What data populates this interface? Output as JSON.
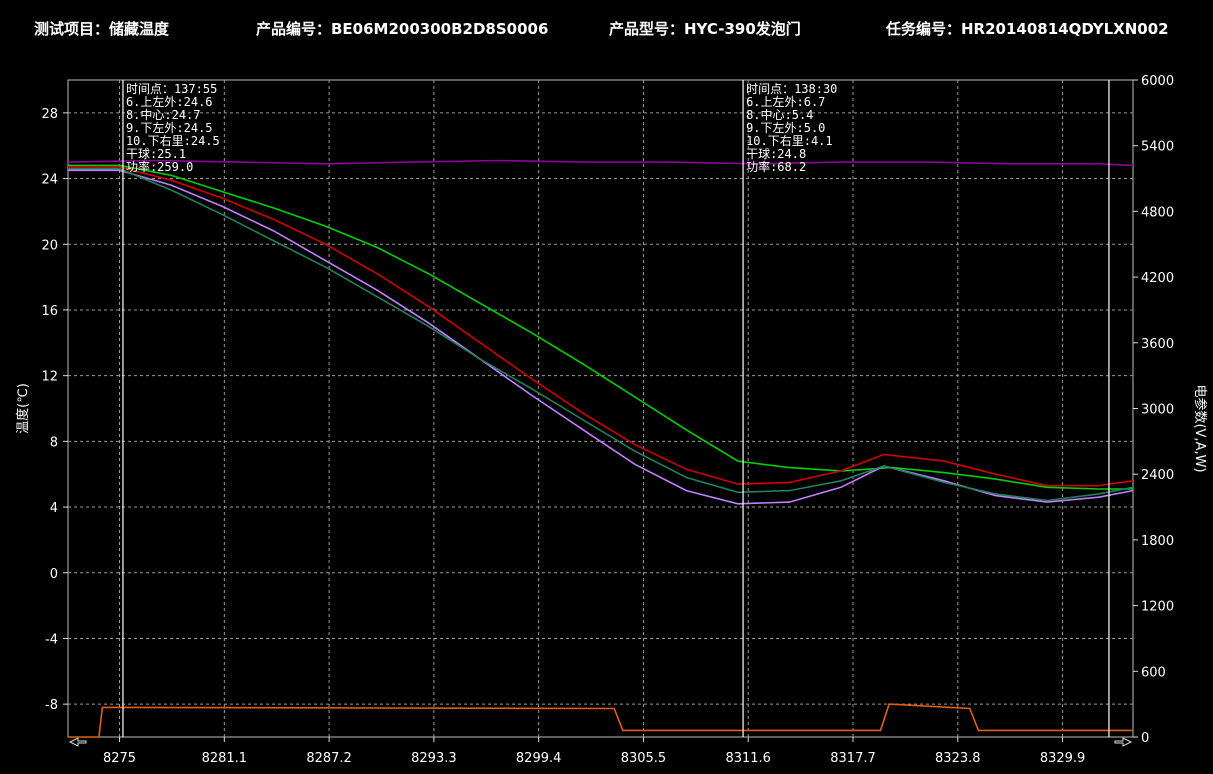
{
  "header": {
    "project": "测试项目：储藏温度",
    "product_code": "产品编号：BE06M200300B2D8S0006",
    "product_model": "产品型号：HYC-390发泡门",
    "task_number": "任务编号：HR20140814QDYLXN002"
  },
  "chart_data": {
    "type": "line",
    "title": "",
    "xlabel": "",
    "ylabel": "温度(℃)",
    "y2label": "电参数(V,A,W)",
    "xlim": [
      8272,
      8334
    ],
    "ylim": [
      -10,
      30
    ],
    "y2lim": [
      0,
      6000
    ],
    "grid": true,
    "x_ticks": [
      8275,
      8281.1,
      8287.2,
      8293.3,
      8299.4,
      8305.5,
      8311.6,
      8317.7,
      8323.8,
      8329.9
    ],
    "y_ticks": [
      -8,
      -4,
      0,
      4,
      8,
      12,
      16,
      20,
      24,
      28
    ],
    "y2_ticks": [
      0,
      600,
      1200,
      1800,
      2400,
      3000,
      3600,
      4200,
      4800,
      5400,
      6000
    ],
    "series": [
      {
        "color": "#00d000",
        "axis": "left",
        "x": [
          8272,
          8275,
          8278,
          8281,
          8284,
          8287,
          8290,
          8293,
          8296,
          8299,
          8302,
          8305,
          8308,
          8311,
          8314,
          8317,
          8320,
          8323,
          8326,
          8329,
          8332,
          8334
        ],
        "y": [
          24.8,
          24.8,
          24.2,
          23.2,
          22.2,
          21.1,
          19.8,
          18.2,
          16.4,
          14.6,
          12.7,
          10.7,
          8.7,
          6.8,
          6.4,
          6.2,
          6.4,
          6.1,
          5.7,
          5.2,
          5.1,
          5.1
        ]
      },
      {
        "color": "#d00000",
        "axis": "left",
        "x": [
          8272,
          8275,
          8278,
          8281,
          8284,
          8287,
          8290,
          8293,
          8296,
          8299,
          8302,
          8305,
          8308,
          8311,
          8314,
          8317,
          8319.5,
          8323,
          8326,
          8329,
          8332,
          8334
        ],
        "y": [
          24.7,
          24.7,
          23.9,
          22.8,
          21.5,
          20.0,
          18.2,
          16.2,
          14.0,
          11.8,
          9.7,
          7.8,
          6.3,
          5.4,
          5.5,
          6.2,
          7.2,
          6.8,
          6.0,
          5.3,
          5.3,
          5.6
        ]
      },
      {
        "color": "#c080ff",
        "axis": "left",
        "x": [
          8272,
          8275,
          8278,
          8281,
          8284,
          8287,
          8290,
          8293,
          8296,
          8299,
          8302,
          8305,
          8308,
          8311,
          8314,
          8317,
          8319.5,
          8323,
          8326,
          8329,
          8332,
          8334
        ],
        "y": [
          24.5,
          24.5,
          23.6,
          22.3,
          20.8,
          19.0,
          17.2,
          15.2,
          13.0,
          10.8,
          8.7,
          6.6,
          5.0,
          4.2,
          4.3,
          5.2,
          6.5,
          5.6,
          4.7,
          4.3,
          4.6,
          5.0
        ]
      },
      {
        "color": "#208060",
        "axis": "left",
        "x": [
          8272,
          8275,
          8278,
          8281,
          8284,
          8287,
          8290,
          8293,
          8296,
          8299,
          8302,
          8305,
          8308,
          8311,
          8314,
          8317,
          8319.5,
          8323,
          8326,
          8329,
          8332,
          8334
        ],
        "y": [
          24.6,
          24.6,
          23.3,
          21.8,
          20.2,
          18.6,
          16.8,
          15.0,
          13.0,
          11.2,
          9.3,
          7.4,
          5.8,
          4.9,
          5.0,
          5.6,
          6.5,
          5.5,
          4.8,
          4.4,
          4.8,
          5.2
        ]
      },
      {
        "color": "#9000a0",
        "axis": "left",
        "x": [
          8272,
          8277,
          8282,
          8287,
          8292,
          8297,
          8302,
          8307,
          8312,
          8317,
          8322,
          8327,
          8332,
          8334
        ],
        "y": [
          25.0,
          25.1,
          25.0,
          24.9,
          25.0,
          25.1,
          25.0,
          25.0,
          24.9,
          25.0,
          25.0,
          24.9,
          24.9,
          24.8
        ]
      },
      {
        "color": "#e06010",
        "axis": "right",
        "step": true,
        "x": [
          8272,
          8273.8,
          8274,
          8303.8,
          8304.3,
          8319.3,
          8319.8,
          8324.5,
          8325.0,
          8334
        ],
        "y": [
          0,
          0,
          270,
          260,
          60,
          60,
          300,
          260,
          60,
          60
        ]
      }
    ],
    "cursors": [
      {
        "x": 8275.2,
        "lines": [
          "时间点：137:55",
          "6.上左外:24.6",
          "8.中心:24.7",
          "9.下左外:24.5",
          "10.下右里:24.5",
          "干球:25.1",
          "功率:259.0"
        ]
      },
      {
        "x": 8311.3,
        "lines": [
          "时间点：138:30",
          "6.上左外:6.7",
          "8.中心:5.4",
          "9.下左外:5.0",
          "10.下右里:4.1",
          "干球:24.8",
          "功率:68.2"
        ]
      },
      {
        "x": 8332.6,
        "lines": []
      }
    ]
  }
}
